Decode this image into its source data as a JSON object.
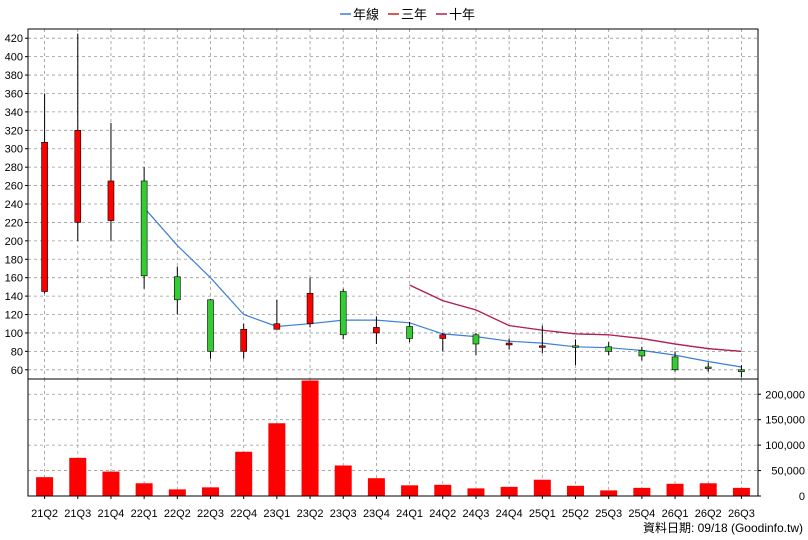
{
  "legend": [
    {
      "label": "年線",
      "color": "#3c7fd6"
    },
    {
      "label": "三年",
      "color": "#d42020"
    },
    {
      "label": "十年",
      "color": "#b0205a"
    }
  ],
  "footer": "資料日期: 09/18  (Goodinfo.tw)",
  "colors": {
    "up": "#ff0000",
    "down": "#33cc33",
    "volume": "#ff0000",
    "grid": "#999999",
    "frame": "#000000"
  },
  "chart_data": [
    {
      "type": "candlestick",
      "categories": [
        "21Q2",
        "21Q3",
        "21Q4",
        "22Q1",
        "22Q2",
        "22Q3",
        "22Q4",
        "23Q1",
        "23Q2",
        "23Q3",
        "23Q4",
        "24Q1",
        "24Q2",
        "24Q3",
        "24Q4",
        "25Q1",
        "25Q2",
        "25Q3",
        "25Q4",
        "26Q1",
        "26Q2",
        "26Q3"
      ],
      "ylim": [
        50,
        430
      ],
      "yticks": [
        60,
        80,
        100,
        120,
        140,
        160,
        180,
        200,
        220,
        240,
        260,
        280,
        300,
        320,
        340,
        360,
        380,
        400,
        420
      ],
      "grid": true,
      "candles": [
        {
          "open": 145,
          "high": 360,
          "low": 143,
          "close": 307
        },
        {
          "open": 220,
          "high": 425,
          "low": 200,
          "close": 320
        },
        {
          "open": 222,
          "high": 328,
          "low": 200,
          "close": 265
        },
        {
          "open": 265,
          "high": 280,
          "low": 148,
          "close": 162
        },
        {
          "open": 161,
          "high": 172,
          "low": 120,
          "close": 136
        },
        {
          "open": 136,
          "high": 137,
          "low": 72,
          "close": 80
        },
        {
          "open": 80,
          "high": 110,
          "low": 72,
          "close": 104
        },
        {
          "open": 104,
          "high": 136,
          "low": 104,
          "close": 110
        },
        {
          "open": 110,
          "high": 160,
          "low": 106,
          "close": 143
        },
        {
          "open": 145,
          "high": 148,
          "low": 93,
          "close": 98
        },
        {
          "open": 100,
          "high": 118,
          "low": 88,
          "close": 106
        },
        {
          "open": 107,
          "high": 112,
          "low": 90,
          "close": 94
        },
        {
          "open": 94,
          "high": 100,
          "low": 80,
          "close": 98
        },
        {
          "open": 98,
          "high": 100,
          "low": 76,
          "close": 88
        },
        {
          "open": 87,
          "high": 94,
          "low": 82,
          "close": 89
        },
        {
          "open": 85,
          "high": 108,
          "low": 78,
          "close": 86
        },
        {
          "open": 86,
          "high": 93,
          "low": 65,
          "close": 85
        },
        {
          "open": 85,
          "high": 90,
          "low": 76,
          "close": 80
        },
        {
          "open": 81,
          "high": 85,
          "low": 70,
          "close": 75
        },
        {
          "open": 74,
          "high": 80,
          "low": 58,
          "close": 60
        },
        {
          "open": 63,
          "high": 68,
          "low": 58,
          "close": 62
        },
        {
          "open": 60,
          "high": 65,
          "low": 52,
          "close": 58
        }
      ],
      "series": [
        {
          "name": "年線",
          "color": "#3c7fd6",
          "values": [
            null,
            null,
            null,
            236,
            195,
            160,
            120,
            107,
            110,
            114,
            114,
            111,
            99,
            96,
            91,
            89,
            85,
            84,
            81,
            76,
            69,
            63
          ]
        },
        {
          "name": "三年",
          "color": "#d42020",
          "values": [
            null,
            null,
            null,
            null,
            null,
            null,
            null,
            null,
            null,
            null,
            null,
            152,
            135,
            125,
            108,
            103,
            99,
            98,
            94,
            88,
            83,
            80
          ]
        },
        {
          "name": "十年",
          "color": "#b0205a",
          "values": [
            null,
            null,
            null,
            null,
            null,
            null,
            null,
            null,
            null,
            null,
            null,
            152,
            135,
            125,
            108,
            103,
            99,
            98,
            94,
            88,
            83,
            80
          ]
        }
      ]
    },
    {
      "type": "bar",
      "categories": [
        "21Q2",
        "21Q3",
        "21Q4",
        "22Q1",
        "22Q2",
        "22Q3",
        "22Q4",
        "23Q1",
        "23Q2",
        "23Q3",
        "23Q4",
        "24Q1",
        "24Q2",
        "24Q3",
        "24Q4",
        "25Q1",
        "25Q2",
        "25Q3",
        "25Q4",
        "26Q1",
        "26Q2",
        "26Q3"
      ],
      "ylim": [
        0,
        230000
      ],
      "yticks": [
        0,
        50000,
        100000,
        150000,
        200000
      ],
      "ytick_labels": [
        "0",
        "50,000",
        "100,000",
        "150,000",
        "200,000"
      ],
      "values": [
        37000,
        75000,
        48000,
        25000,
        13000,
        17000,
        87000,
        143000,
        227000,
        60000,
        35000,
        21000,
        22000,
        15000,
        18000,
        32000,
        20000,
        11000,
        16000,
        24000,
        25000,
        16000
      ]
    }
  ]
}
